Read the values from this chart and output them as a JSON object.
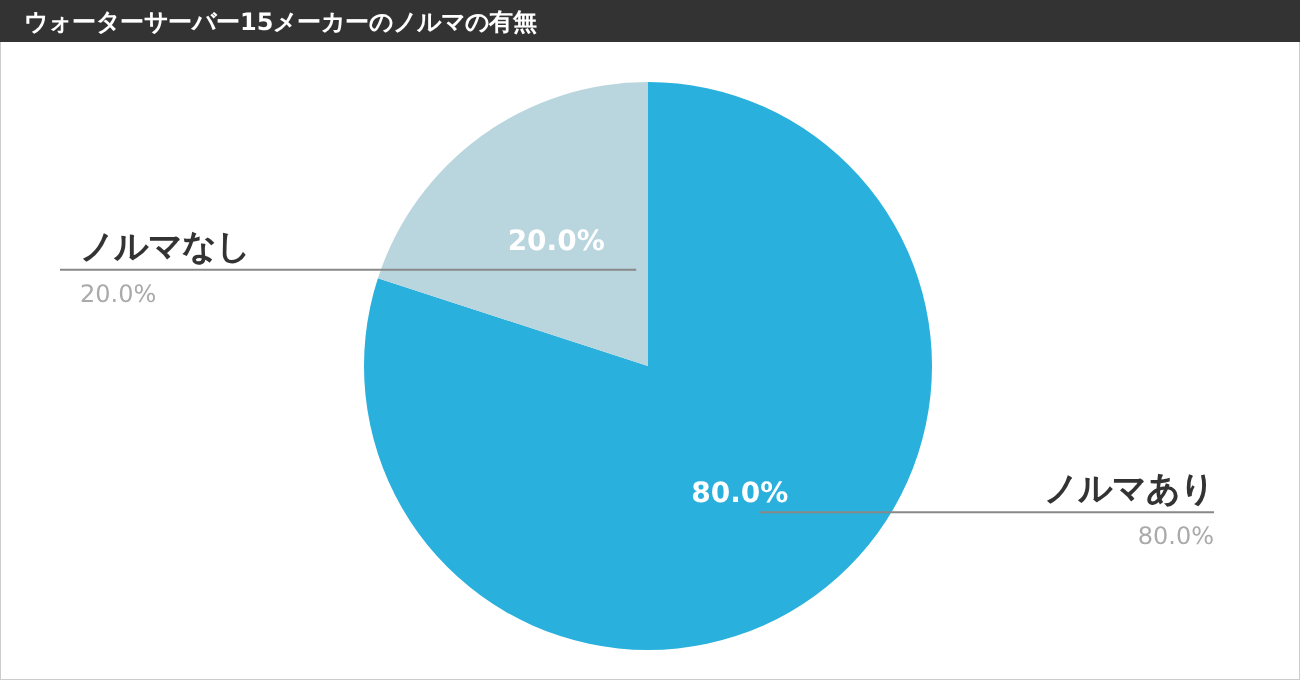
{
  "chart_data": {
    "type": "pie",
    "title": "ウォーターサーバー15メーカーのノルマの有無",
    "categories": [
      "ノルマあり",
      "ノルマなし"
    ],
    "values": [
      80,
      20
    ],
    "colors": [
      "#29b0dc",
      "#b9d5de"
    ],
    "value_labels": [
      "80.0%",
      "20.0%"
    ]
  }
}
